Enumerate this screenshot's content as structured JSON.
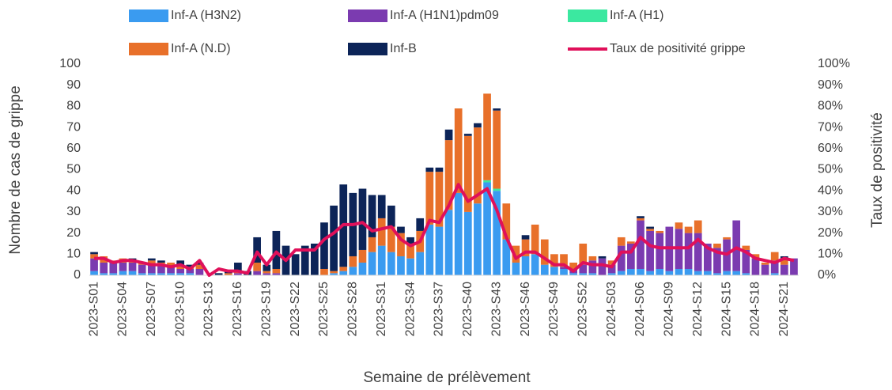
{
  "chart_data": {
    "type": "bar",
    "stacked": true,
    "x_label": "Semaine de prélèvement",
    "y_label": "Nombre de cas de grippe",
    "y2_label": "Taux de positivité",
    "categories": [
      "2023-S01",
      null,
      null,
      "2023-S04",
      null,
      null,
      "2023-S07",
      null,
      null,
      "2023-S10",
      null,
      null,
      "2023-S13",
      null,
      null,
      "2023-S16",
      null,
      null,
      "2023-S19",
      null,
      null,
      "2023-S22",
      null,
      null,
      "2023-S25",
      null,
      null,
      "2023-S28",
      null,
      null,
      "2023-S31",
      null,
      null,
      "2023-S34",
      null,
      null,
      "2023-S37",
      null,
      null,
      "2023-S40",
      null,
      null,
      "2023-S43",
      null,
      null,
      "2023-S46",
      null,
      null,
      "2023-S49",
      null,
      null,
      "2023-S52",
      null,
      null,
      "2024-S03",
      null,
      null,
      "2024-S06",
      null,
      null,
      "2024-S09",
      null,
      null,
      "2024-S12",
      null,
      null,
      "2024-S15",
      null,
      null,
      "2024-S18",
      null,
      null,
      "2024-S21",
      null
    ],
    "series": [
      {
        "name": "Inf-A (H3N2)",
        "color": "#3a9bf0",
        "values": [
          2,
          1,
          1,
          2,
          2,
          1,
          1,
          1,
          1,
          1,
          1,
          0,
          0,
          0,
          0,
          0,
          0,
          0,
          0,
          0,
          0,
          0,
          0,
          0,
          0,
          1,
          2,
          4,
          6,
          11,
          14,
          11,
          9,
          8,
          11,
          24,
          23,
          31,
          39,
          30,
          34,
          44,
          40,
          17,
          6,
          9,
          10,
          5,
          4,
          3,
          1,
          1,
          1,
          0,
          1,
          2,
          3,
          3,
          2,
          3,
          2,
          3,
          3,
          2,
          2,
          1,
          2,
          2,
          1,
          0,
          0,
          1,
          0,
          0
        ]
      },
      {
        "name": "Inf-A  (H1N1)pdm09",
        "color": "#7b3bb0",
        "values": [
          6,
          5,
          5,
          4,
          4,
          4,
          4,
          4,
          3,
          2,
          2,
          3,
          0,
          0,
          0,
          1,
          0,
          2,
          1,
          1,
          0,
          0,
          0,
          0,
          0,
          0,
          0,
          0,
          0,
          0,
          0,
          0,
          0,
          0,
          0,
          0,
          0,
          0,
          0,
          0,
          0,
          0,
          0,
          0,
          0,
          0,
          0,
          0,
          0,
          1,
          2,
          4,
          6,
          8,
          4,
          12,
          12,
          23,
          19,
          17,
          21,
          19,
          17,
          18,
          13,
          12,
          15,
          24,
          11,
          8,
          5,
          6,
          5,
          8
        ]
      },
      {
        "name": "Inf-A (H1)",
        "color": "#3be8a0",
        "values": [
          0,
          0,
          0,
          0,
          0,
          0,
          0,
          0,
          0,
          0,
          0,
          0,
          0,
          0,
          0,
          0,
          0,
          0,
          0,
          0,
          0,
          0,
          0,
          0,
          0,
          0,
          0,
          0,
          0,
          0,
          0,
          0,
          0,
          0,
          0,
          0,
          0,
          0,
          0,
          0,
          0,
          1,
          1,
          0,
          0,
          0,
          0,
          0,
          0,
          0,
          0,
          0,
          0,
          0,
          0,
          0,
          0,
          0,
          0,
          0,
          0,
          0,
          0,
          0,
          0,
          0,
          0,
          0,
          0,
          0,
          0,
          0,
          0,
          0
        ]
      },
      {
        "name": "Inf-A (N.D)",
        "color": "#e8702a",
        "values": [
          2,
          3,
          1,
          2,
          1,
          1,
          2,
          1,
          2,
          2,
          1,
          2,
          0,
          0,
          1,
          1,
          0,
          4,
          1,
          2,
          0,
          0,
          0,
          0,
          3,
          1,
          2,
          5,
          6,
          7,
          13,
          12,
          11,
          7,
          10,
          25,
          26,
          33,
          40,
          36,
          36,
          41,
          37,
          17,
          8,
          8,
          14,
          12,
          6,
          6,
          3,
          10,
          2,
          0,
          2,
          4,
          1,
          1,
          1,
          1,
          0,
          3,
          3,
          6,
          0,
          2,
          1,
          0,
          2,
          2,
          1,
          4,
          3,
          0
        ]
      },
      {
        "name": "Inf-B",
        "color": "#0c2458",
        "values": [
          1,
          0,
          0,
          0,
          1,
          0,
          1,
          1,
          0,
          2,
          1,
          1,
          0,
          1,
          1,
          4,
          2,
          12,
          3,
          18,
          14,
          10,
          14,
          15,
          22,
          31,
          39,
          30,
          29,
          20,
          11,
          10,
          3,
          3,
          6,
          2,
          2,
          5,
          0,
          1,
          2,
          0,
          1,
          0,
          0,
          2,
          0,
          0,
          0,
          0,
          0,
          0,
          0,
          1,
          0,
          0,
          0,
          1,
          1,
          0,
          0,
          0,
          0,
          0,
          0,
          0,
          0,
          0,
          0,
          0,
          0,
          0,
          1,
          0
        ]
      },
      {
        "name": "Taux de positivité grippe",
        "color": "#e0105a",
        "type": "line",
        "axis": "y2",
        "values": [
          8,
          8,
          6,
          7,
          7,
          6,
          5,
          5,
          4,
          5,
          3,
          7,
          0,
          3,
          2,
          2,
          1,
          11,
          5,
          11,
          7,
          12,
          12,
          12,
          17,
          20,
          24,
          24,
          25,
          21,
          22,
          23,
          17,
          14,
          16,
          26,
          25,
          33,
          43,
          35,
          38,
          41,
          31,
          18,
          8,
          11,
          11,
          8,
          5,
          5,
          2,
          6,
          5,
          5,
          4,
          11,
          11,
          18,
          14,
          13,
          13,
          13,
          13,
          17,
          13,
          11,
          10,
          13,
          11,
          8,
          7,
          6,
          8,
          7
        ]
      }
    ],
    "ylim": [
      0,
      100
    ],
    "yticks": [
      0,
      10,
      20,
      30,
      40,
      50,
      60,
      70,
      80,
      90,
      100
    ],
    "y2lim": [
      0,
      100
    ],
    "y2ticks": [
      {
        "value": 0,
        "label": "0%"
      },
      {
        "value": 10,
        "label": "10%"
      },
      {
        "value": 20,
        "label": "20%"
      },
      {
        "value": 30,
        "label": "30%"
      },
      {
        "value": 40,
        "label": "40%"
      },
      {
        "value": 50,
        "label": "50%"
      },
      {
        "value": 60,
        "label": "60%"
      },
      {
        "value": 70,
        "label": "70%"
      },
      {
        "value": 80,
        "label": "80%"
      },
      {
        "value": 90,
        "label": "90%"
      },
      {
        "value": 100,
        "label": "100%"
      }
    ],
    "grid": false
  }
}
